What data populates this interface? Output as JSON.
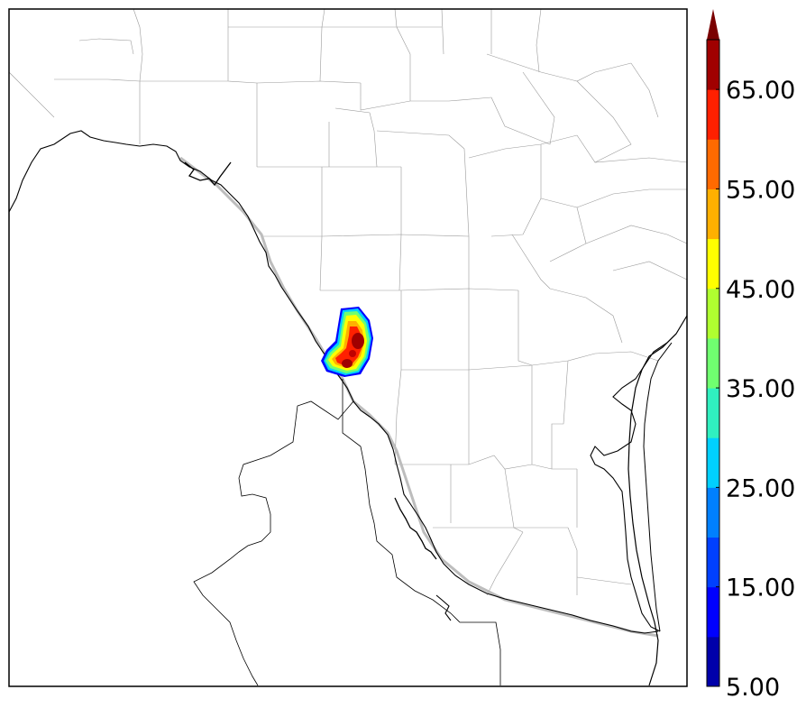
{
  "colorbar": {
    "ticks": [
      "5.00",
      "15.00",
      "25.00",
      "35.00",
      "45.00",
      "55.00",
      "65.00"
    ],
    "levels": [
      5,
      10,
      15,
      20,
      25,
      30,
      35,
      40,
      45,
      50,
      55,
      60,
      65,
      70
    ],
    "colors": [
      "#0000aa",
      "#0000ff",
      "#0040ff",
      "#0080ff",
      "#00d0ff",
      "#30f0c0",
      "#70ff70",
      "#b0ff30",
      "#ffff00",
      "#ffb000",
      "#ff6a00",
      "#ff2000",
      "#a00000"
    ],
    "extend_color": "#7a0000"
  },
  "colors": {
    "land": "#ffffff",
    "boundary": "#000000",
    "county_lines": "#9a9a9a",
    "river_gray": "#bdbdbd"
  }
}
